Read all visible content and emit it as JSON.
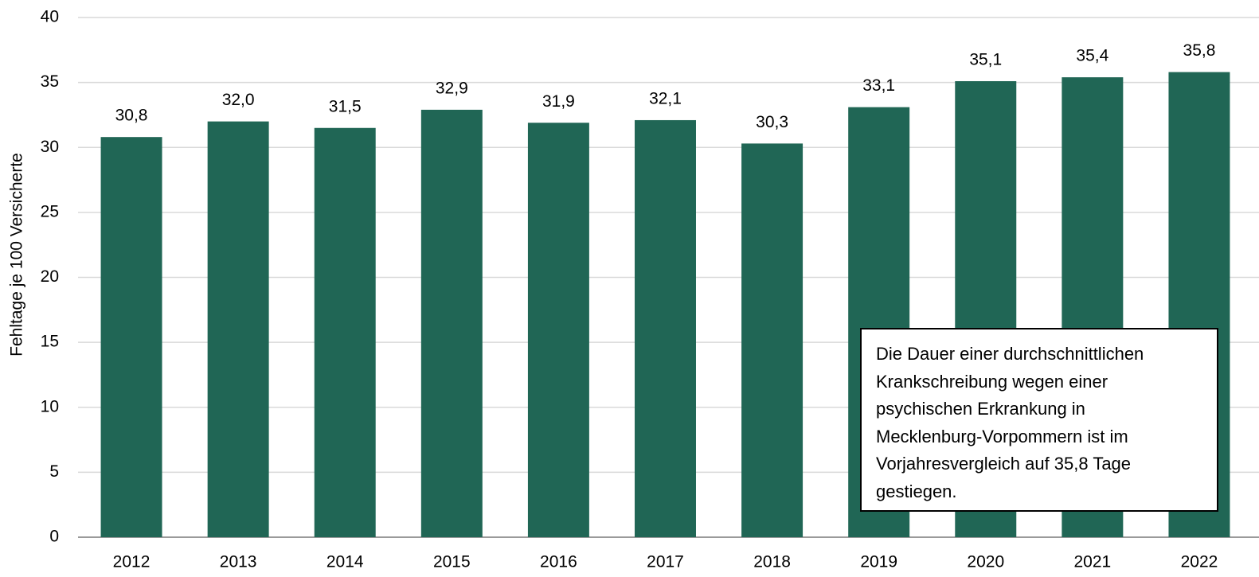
{
  "chart_data": {
    "type": "bar",
    "y_axis_label": "Fehltage je 100 Versicherte",
    "categories": [
      "2012",
      "2013",
      "2014",
      "2015",
      "2016",
      "2017",
      "2018",
      "2019",
      "2020",
      "2021",
      "2022"
    ],
    "values": [
      30.8,
      32.0,
      31.5,
      32.9,
      31.9,
      32.1,
      30.3,
      33.1,
      35.1,
      35.4,
      35.8
    ],
    "value_labels": [
      "30,8",
      "32,0",
      "31,5",
      "32,9",
      "31,9",
      "32,1",
      "30,3",
      "33,1",
      "35,1",
      "35,4",
      "35,8"
    ],
    "color": "#206655",
    "ylim": [
      0,
      40
    ],
    "yticks": [
      0,
      5,
      10,
      15,
      20,
      25,
      30,
      35,
      40
    ],
    "grid": true,
    "annotation": "Die Dauer einer durchschnittlichen Krankschreibung wegen einer psychischen Erkrankung in Mecklenburg-Vorpommern ist im Vorjahresvergleich auf 35,8 Tage gestiegen."
  }
}
